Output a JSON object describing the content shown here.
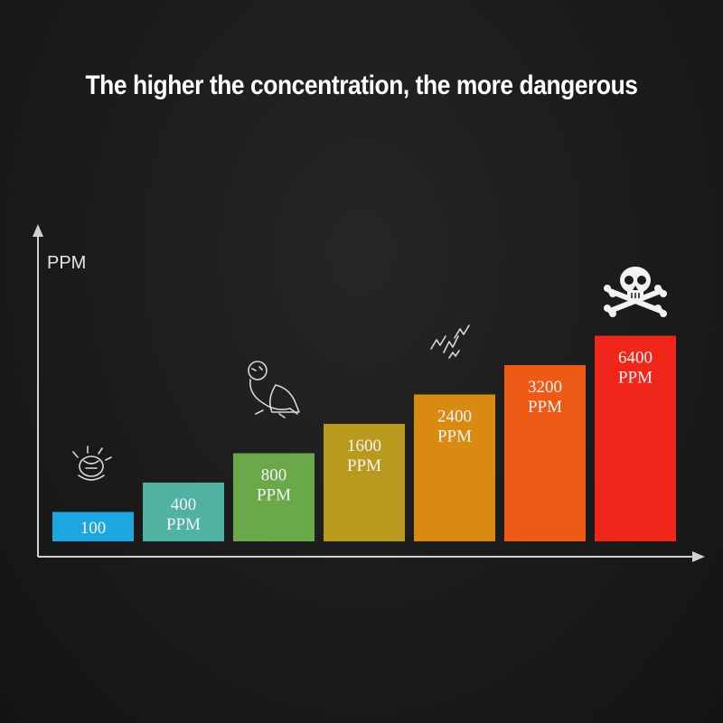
{
  "title": "The higher the concentration, the more dangerous",
  "chart_data": {
    "type": "bar",
    "title": "The higher the concentration, the more dangerous",
    "ylabel": "PPM",
    "xlabel": "",
    "categories": [
      "100",
      "400 PPM",
      "800 PPM",
      "1600 PPM",
      "2400 PPM",
      "3200 PPM",
      "6400 PPM"
    ],
    "bar_labels": [
      [
        "100"
      ],
      [
        "400",
        "PPM"
      ],
      [
        "800",
        "PPM"
      ],
      [
        "1600",
        "PPM"
      ],
      [
        "2400",
        "PPM"
      ],
      [
        "3200",
        "PPM"
      ],
      [
        "6400",
        "PPM"
      ]
    ],
    "values": [
      100,
      400,
      800,
      1600,
      2400,
      3200,
      6400
    ],
    "heights_relative": [
      1,
      2,
      3,
      4,
      5,
      6,
      7
    ],
    "colors": [
      "#1da7e0",
      "#4fb2a2",
      "#6aa84a",
      "#b99a1f",
      "#d98a10",
      "#ee5a15",
      "#f0261a"
    ],
    "icons": [
      {
        "bar": 0,
        "name": "headache-icon"
      },
      {
        "bar": 2,
        "name": "dizzy-person-icon"
      },
      {
        "bar": 4,
        "name": "shock-icon"
      },
      {
        "bar": 6,
        "name": "skull-crossbones-icon"
      }
    ],
    "axis_color": "#d0d0d0",
    "grid": false,
    "legend": "none"
  }
}
